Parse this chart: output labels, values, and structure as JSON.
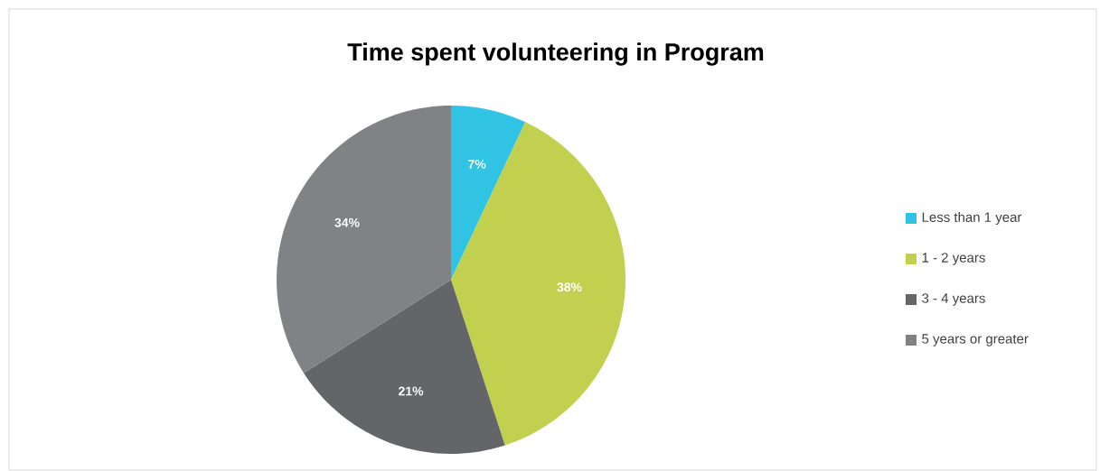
{
  "chart_data": {
    "type": "pie",
    "title": "Time spent volunteering in Program",
    "categories": [
      "Less than 1 year",
      "1 - 2 years",
      "3 - 4 years",
      "5 years or greater"
    ],
    "values": [
      7,
      38,
      21,
      34
    ],
    "value_labels": [
      "7%",
      "38%",
      "21%",
      "34%"
    ],
    "colors": [
      "#31c3e3",
      "#c2d04f",
      "#646569",
      "#818285"
    ],
    "legend": "right"
  }
}
